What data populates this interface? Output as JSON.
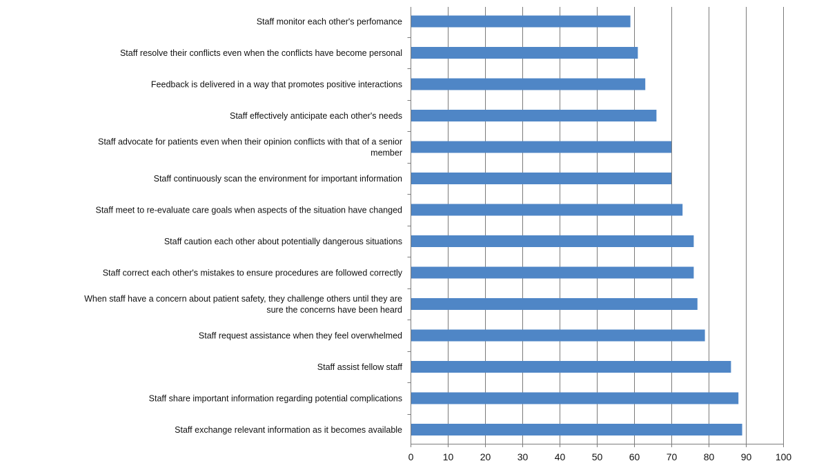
{
  "colors": {
    "bar": "#4f86c6",
    "grid": "#7a7a7a",
    "text": "#111111"
  },
  "chart_data": {
    "type": "bar",
    "orientation": "horizontal",
    "title": "",
    "xlabel": "",
    "ylabel": "",
    "xlim": [
      0,
      100
    ],
    "x_ticks": [
      0,
      10,
      20,
      30,
      40,
      50,
      60,
      70,
      80,
      90,
      100
    ],
    "grid": "vertical",
    "legend": "none",
    "categories": [
      "Staff monitor each other's perfomance",
      "Staff resolve their conflicts even when the conflicts have become personal",
      "Feedback is delivered in a way that promotes positive interactions",
      "Staff effectively anticipate each other's needs",
      "Staff advocate for patients even when their opinion conflicts with that of a senior member",
      "Staff continuously scan the environment for important information",
      "Staff meet to re-evaluate care goals when aspects of the situation have changed",
      "Staff caution each other about potentially dangerous situations",
      "Staff correct each other's mistakes to ensure procedures are followed correctly",
      "When staff have a concern about patient safety, they challenge others until they are sure the concerns have been heard",
      "Staff request assistance when they feel overwhelmed",
      "Staff assist fellow staff",
      "Staff share important information regarding potential complications",
      "Staff exchange relevant information as it becomes available"
    ],
    "category_lines": [
      [
        "Staff monitor each other's perfomance"
      ],
      [
        "Staff resolve their conflicts even when the conflicts have become personal"
      ],
      [
        "Feedback is delivered in a way that promotes positive interactions"
      ],
      [
        "Staff effectively anticipate each other's needs"
      ],
      [
        "Staff advocate for patients even when their opinion conflicts with that of a senior",
        "member"
      ],
      [
        "Staff continuously scan the environment for important information"
      ],
      [
        "Staff meet to re-evaluate care goals when aspects of the situation have changed"
      ],
      [
        "Staff caution each other about potentially dangerous situations"
      ],
      [
        "Staff correct each other's mistakes to ensure procedures are followed correctly"
      ],
      [
        "When staff have a concern about patient safety, they challenge others until they are",
        "sure the concerns have been heard"
      ],
      [
        "Staff request assistance when they feel overwhelmed"
      ],
      [
        "Staff assist fellow staff"
      ],
      [
        "Staff share important information regarding potential complications"
      ],
      [
        "Staff exchange relevant information as it becomes available"
      ]
    ],
    "values": [
      59,
      61,
      63,
      66,
      70,
      70,
      73,
      76,
      76,
      77,
      79,
      86,
      88,
      89
    ]
  }
}
